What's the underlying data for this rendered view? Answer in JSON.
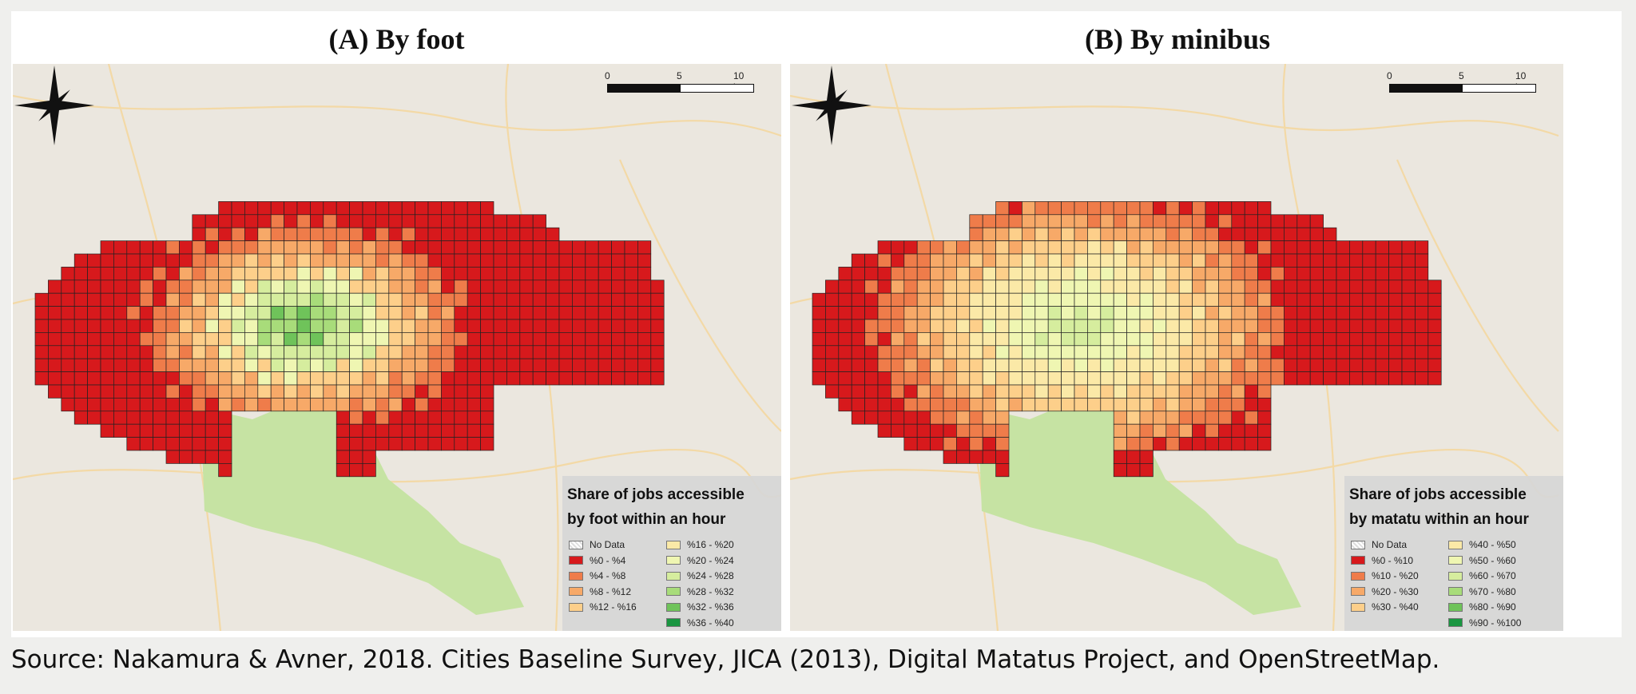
{
  "figure": {
    "panels": [
      {
        "id": "a",
        "title": "(A) By foot",
        "scale": {
          "labels": [
            "0",
            "5",
            "10 km"
          ]
        },
        "legend": {
          "title_line1": "Share of jobs accessible",
          "title_line2": "by foot within an hour",
          "items": [
            {
              "label": "No Data",
              "color": "#ffffff"
            },
            {
              "label": "%0 - %4",
              "color": "#d7191c"
            },
            {
              "label": "%4 - %8",
              "color": "#ef7c4a"
            },
            {
              "label": "%8 - %12",
              "color": "#f7a968"
            },
            {
              "label": "%12 - %16",
              "color": "#fdcf8a"
            },
            {
              "label": "%16 - %20",
              "color": "#fbe9a7"
            },
            {
              "label": "%20 - %24",
              "color": "#eff6b2"
            },
            {
              "label": "%24 - %28",
              "color": "#d6ed9e"
            },
            {
              "label": "%28 - %32",
              "color": "#a8dc7a"
            },
            {
              "label": "%32 - %36",
              "color": "#6fc35a"
            },
            {
              "label": "%36 - %40",
              "color": "#1a9641"
            }
          ]
        }
      },
      {
        "id": "b",
        "title": "(B) By minibus",
        "scale": {
          "labels": [
            "0",
            "5",
            "10 km"
          ]
        },
        "legend": {
          "title_line1": "Share of jobs accessible",
          "title_line2": "by matatu within an hour",
          "items": [
            {
              "label": "No Data",
              "color": "#ffffff"
            },
            {
              "label": "%0 - %10",
              "color": "#d7191c"
            },
            {
              "label": "%10 - %20",
              "color": "#ef7c4a"
            },
            {
              "label": "%20 - %30",
              "color": "#f7a968"
            },
            {
              "label": "%30 - %40",
              "color": "#fdcf8a"
            },
            {
              "label": "%40 - %50",
              "color": "#fbe9a7"
            },
            {
              "label": "%50 - %60",
              "color": "#eff6b2"
            },
            {
              "label": "%60 - %70",
              "color": "#d6ed9e"
            },
            {
              "label": "%70 - %80",
              "color": "#a8dc7a"
            },
            {
              "label": "%80 - %90",
              "color": "#6fc35a"
            },
            {
              "label": "%90 - %100",
              "color": "#1a9641"
            }
          ]
        }
      }
    ],
    "map_colors": {
      "basemap": "#ebe7df",
      "park": "#c6e3a3",
      "grid_stroke": "#222222"
    }
  },
  "caption": "Source: Nakamura & Avner, 2018. Cities Baseline Survey, JICA (2013), Digital Matatus Project, and OpenStreetMap."
}
